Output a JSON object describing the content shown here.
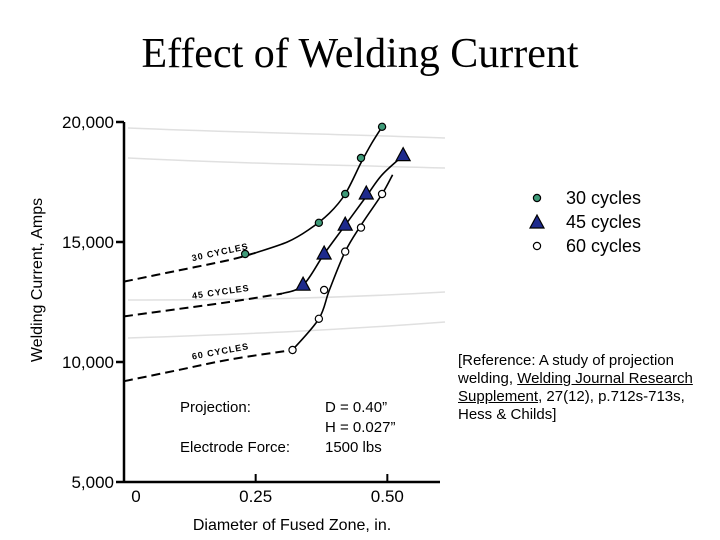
{
  "chart_data": {
    "type": "scatter",
    "title": "Effect of Welding Current",
    "xlabel": "Diameter of Fused Zone, in.",
    "ylabel": "Welding Current, Amps",
    "xlim": [
      0,
      0.6
    ],
    "ylim": [
      5000,
      20000
    ],
    "x_ticks": [
      {
        "value": 0,
        "label": "0"
      },
      {
        "value": 0.25,
        "label": "0.25"
      },
      {
        "value": 0.5,
        "label": "0.50"
      }
    ],
    "y_ticks": [
      {
        "value": 5000,
        "label": "5,000"
      },
      {
        "value": 10000,
        "label": "10,000"
      },
      {
        "value": 15000,
        "label": "15,000"
      },
      {
        "value": 20000,
        "label": "20,000"
      }
    ],
    "grid": false,
    "legend_position": "right",
    "series": [
      {
        "name": "30 cycles",
        "marker": "circle",
        "color": "#3e9a78",
        "curve_label": "30 CYCLES",
        "points": [
          {
            "x": 0.23,
            "y": 14500
          },
          {
            "x": 0.37,
            "y": 15800
          },
          {
            "x": 0.42,
            "y": 17000
          },
          {
            "x": 0.45,
            "y": 18500
          },
          {
            "x": 0.49,
            "y": 19800
          }
        ],
        "baseline": [
          [
            0.0,
            13350
          ],
          [
            0.1,
            13800
          ],
          [
            0.2,
            14250
          ],
          [
            0.25,
            14550
          ]
        ],
        "curve": [
          [
            0.25,
            14550
          ],
          [
            0.31,
            15000
          ],
          [
            0.35,
            15500
          ],
          [
            0.39,
            16200
          ],
          [
            0.42,
            17000
          ],
          [
            0.45,
            18300
          ],
          [
            0.47,
            19100
          ],
          [
            0.49,
            19800
          ]
        ]
      },
      {
        "name": "45 cycles",
        "marker": "triangle",
        "color": "#1e2a8c",
        "curve_label": "45 CYCLES",
        "points": [
          {
            "x": 0.34,
            "y": 13200
          },
          {
            "x": 0.38,
            "y": 14500
          },
          {
            "x": 0.42,
            "y": 15700
          },
          {
            "x": 0.46,
            "y": 17000
          },
          {
            "x": 0.53,
            "y": 18600
          }
        ],
        "baseline": [
          [
            0.0,
            11900
          ],
          [
            0.1,
            12200
          ],
          [
            0.2,
            12500
          ],
          [
            0.3,
            12850
          ]
        ],
        "curve": [
          [
            0.3,
            12850
          ],
          [
            0.34,
            13200
          ],
          [
            0.38,
            14500
          ],
          [
            0.42,
            15700
          ],
          [
            0.46,
            16900
          ],
          [
            0.49,
            17800
          ],
          [
            0.53,
            18600
          ]
        ]
      },
      {
        "name": "60 cycles",
        "marker": "open-circle",
        "color": "#ffffff",
        "curve_label": "60 CYCLES",
        "points": [
          {
            "x": 0.32,
            "y": 10500
          },
          {
            "x": 0.37,
            "y": 11800
          },
          {
            "x": 0.38,
            "y": 13000
          },
          {
            "x": 0.42,
            "y": 14600
          },
          {
            "x": 0.45,
            "y": 15600
          },
          {
            "x": 0.49,
            "y": 17000
          }
        ],
        "baseline": [
          [
            0.0,
            9200
          ],
          [
            0.1,
            9650
          ],
          [
            0.2,
            10100
          ],
          [
            0.32,
            10500
          ]
        ],
        "curve": [
          [
            0.32,
            10500
          ],
          [
            0.37,
            11800
          ],
          [
            0.39,
            13000
          ],
          [
            0.42,
            14600
          ],
          [
            0.45,
            15700
          ],
          [
            0.49,
            17000
          ],
          [
            0.51,
            17800
          ]
        ]
      }
    ]
  },
  "annotation": {
    "projection_label": "Projection:",
    "projection_d": "D = 0.40”",
    "projection_h": "H = 0.027”",
    "electrode_label": "Electrode Force:",
    "electrode_value": "1500 lbs"
  },
  "reference": {
    "prefix": "[Reference:  A study of projection welding, ",
    "journal": "Welding Journal Research Supplement",
    "suffix": ", 27(12), p.712s-713s, Hess & Childs]"
  }
}
